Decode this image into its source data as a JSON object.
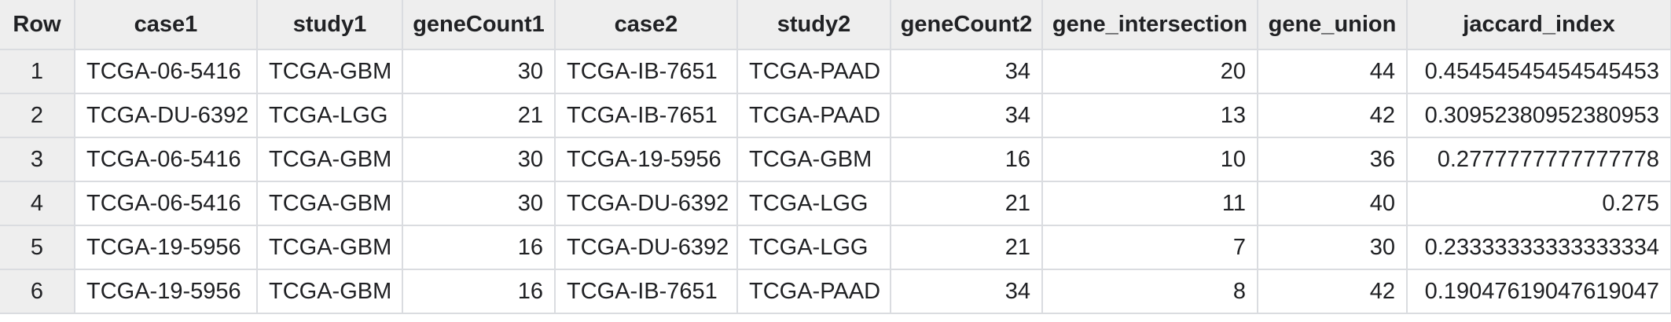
{
  "table": {
    "columns": [
      "Row",
      "case1",
      "study1",
      "geneCount1",
      "case2",
      "study2",
      "geneCount2",
      "gene_intersection",
      "gene_union",
      "jaccard_index"
    ],
    "rows": [
      [
        "1",
        "TCGA-06-5416",
        "TCGA-GBM",
        "30",
        "TCGA-IB-7651",
        "TCGA-PAAD",
        "34",
        "20",
        "44",
        "0.45454545454545453"
      ],
      [
        "2",
        "TCGA-DU-6392",
        "TCGA-LGG",
        "21",
        "TCGA-IB-7651",
        "TCGA-PAAD",
        "34",
        "13",
        "42",
        "0.30952380952380953"
      ],
      [
        "3",
        "TCGA-06-5416",
        "TCGA-GBM",
        "30",
        "TCGA-19-5956",
        "TCGA-GBM",
        "16",
        "10",
        "36",
        "0.2777777777777778"
      ],
      [
        "4",
        "TCGA-06-5416",
        "TCGA-GBM",
        "30",
        "TCGA-DU-6392",
        "TCGA-LGG",
        "21",
        "11",
        "40",
        "0.275"
      ],
      [
        "5",
        "TCGA-19-5956",
        "TCGA-GBM",
        "16",
        "TCGA-DU-6392",
        "TCGA-LGG",
        "21",
        "7",
        "30",
        "0.23333333333333334"
      ],
      [
        "6",
        "TCGA-19-5956",
        "TCGA-GBM",
        "16",
        "TCGA-IB-7651",
        "TCGA-PAAD",
        "34",
        "8",
        "42",
        "0.19047619047619047"
      ]
    ]
  },
  "colors": {
    "header_bg": "#eeeeee",
    "grid": "#dadce0",
    "text": "#202124"
  }
}
